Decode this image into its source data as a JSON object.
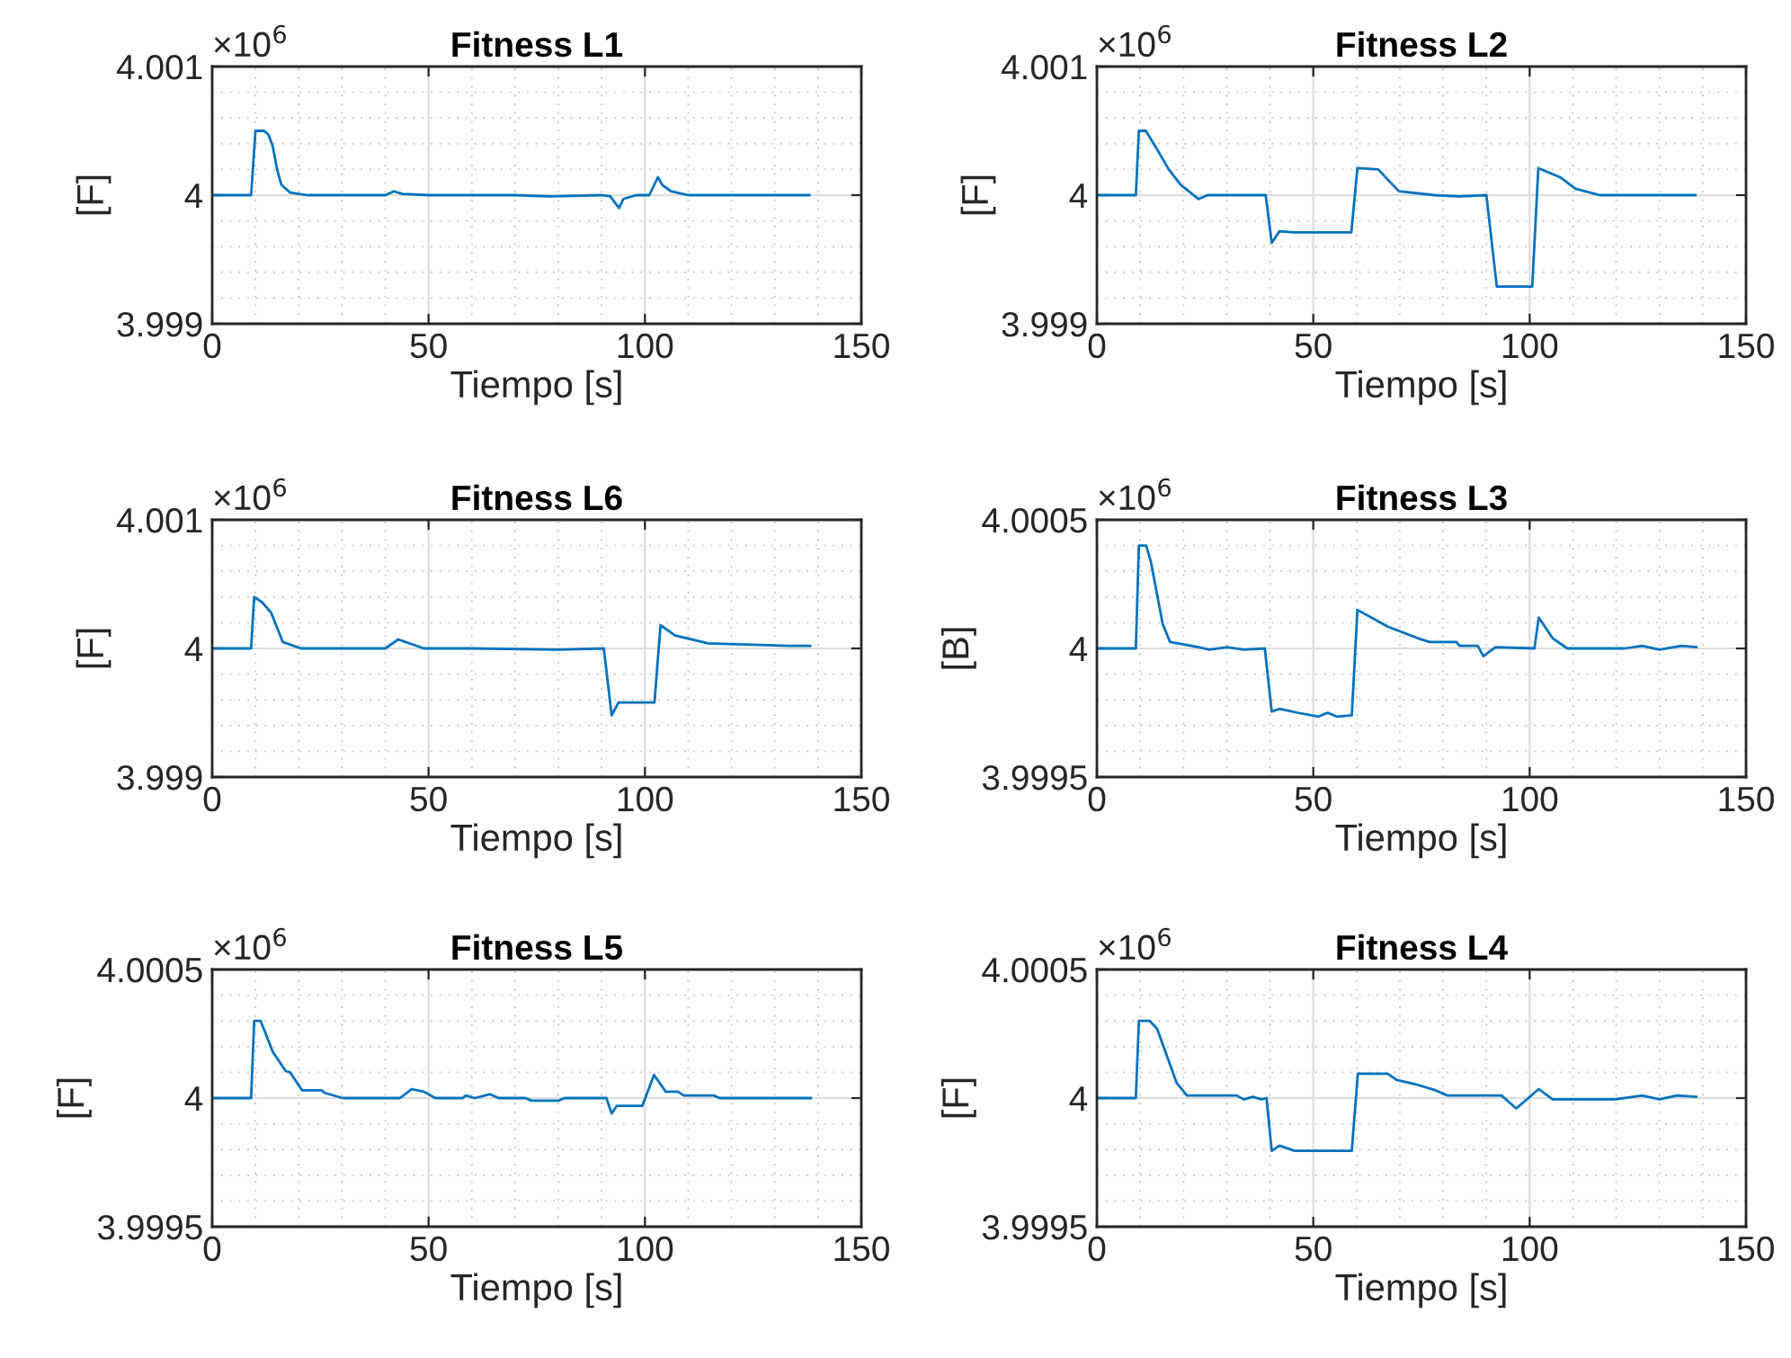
{
  "chart_data": [
    {
      "type": "line",
      "title": "Fitness L1",
      "xlabel": "Tiempo [s]",
      "ylabel": "[F]",
      "annotations": [
        "×10$^{6}$"
      ],
      "grid": true,
      "xlim": [
        0,
        150
      ],
      "xticks": [
        0,
        50,
        100,
        150
      ],
      "ylim": [
        3.999,
        4.001
      ],
      "yticks": [
        3.999,
        4,
        4.001
      ],
      "series": [
        {
          "color": "#0072bd",
          "x": [
            0,
            9,
            10,
            12,
            13,
            14,
            15,
            16,
            18,
            20,
            22,
            30,
            40,
            42,
            44,
            50,
            55,
            70,
            78,
            90,
            92,
            94,
            95,
            98,
            101,
            103,
            104,
            106,
            110,
            120,
            130,
            138
          ],
          "values": [
            4,
            4,
            4.0005,
            4.0005,
            4.00047,
            4.00038,
            4.0002,
            4.00008,
            4.00002,
            4.00001,
            4,
            4,
            4,
            4.00003,
            4.00001,
            4,
            4,
            4,
            3.99999,
            4,
            3.99999,
            3.9999,
            3.99997,
            4,
            4,
            4.00014,
            4.00008,
            4.00003,
            4,
            4,
            4,
            4
          ]
        }
      ]
    },
    {
      "type": "line",
      "title": "Fitness L2",
      "xlabel": "Tiempo [s]",
      "ylabel": "[F]",
      "annotations": [
        "×10$^{6}$"
      ],
      "grid": true,
      "xlim": [
        0,
        150
      ],
      "xticks": [
        0,
        50,
        100,
        150
      ],
      "ylim": [
        3.999,
        4.001
      ],
      "yticks": [
        3.999,
        4,
        4.001
      ],
      "series": [
        {
          "color": "#0072bd",
          "x": [
            0,
            9,
            9.7,
            11.3,
            13.5,
            16.6,
            19.4,
            23.5,
            25.6,
            39,
            40.4,
            42.2,
            45.6,
            58.8,
            60.2,
            65,
            69.8,
            78,
            83.7,
            90,
            92.4,
            100.6,
            102,
            107,
            110.6,
            116.2,
            138.3
          ],
          "values": [
            4,
            4,
            4.0005,
            4.0005,
            4.00038,
            4.0002,
            4.00008,
            3.99997,
            4,
            4,
            3.99963,
            3.99972,
            3.99971,
            3.99971,
            4.00021,
            4.0002,
            4.00003,
            4,
            3.99999,
            4,
            3.99929,
            3.99929,
            4.00021,
            4.00014,
            4.00005,
            4,
            4
          ]
        }
      ]
    },
    {
      "type": "line",
      "title": "Fitness L6",
      "xlabel": "Tiempo [s]",
      "ylabel": "[F]",
      "annotations": [
        "×10$^{6}$"
      ],
      "grid": true,
      "xlim": [
        0,
        150
      ],
      "xticks": [
        0,
        50,
        100,
        150
      ],
      "ylim": [
        3.999,
        4.001
      ],
      "yticks": [
        3.999,
        4,
        4.001
      ],
      "series": [
        {
          "color": "#0072bd",
          "x": [
            0,
            9,
            9.7,
            11.5,
            13.6,
            16.3,
            20.5,
            30,
            40,
            43,
            48.9,
            60,
            80,
            90.5,
            92.3,
            93.9,
            102.2,
            103.6,
            107,
            114.6,
            133.4,
            138.2
          ],
          "values": [
            4,
            4,
            4.0004,
            4.00036,
            4.00028,
            4.00005,
            4,
            4,
            4,
            4.00007,
            4,
            4,
            3.99999,
            4,
            3.99948,
            3.99958,
            3.99958,
            4.00018,
            4.0001,
            4.00004,
            4.00002,
            4.00002
          ]
        }
      ]
    },
    {
      "type": "line",
      "title": "Fitness L3",
      "xlabel": "Tiempo [s]",
      "ylabel": "[B]",
      "annotations": [
        "×10$^{6}$"
      ],
      "grid": true,
      "xlim": [
        0,
        150
      ],
      "xticks": [
        0,
        50,
        100,
        150
      ],
      "ylim": [
        3.9995,
        4.0005
      ],
      "yticks": [
        3.9995,
        4,
        4.0005
      ],
      "series": [
        {
          "color": "#0072bd",
          "x": [
            0,
            9,
            9.7,
            11.4,
            12.5,
            15.2,
            16.9,
            18.7,
            23.5,
            26,
            30,
            34,
            38.8,
            40.4,
            42.2,
            46.4,
            51.2,
            53.3,
            55.4,
            58.9,
            60.2,
            67.2,
            74.1,
            76.9,
            83.1,
            83.8,
            88,
            89.3,
            92.1,
            101.1,
            102.1,
            105.3,
            108.7,
            121.9,
            126,
            130,
            135,
            138.5
          ],
          "values": [
            4,
            4,
            4.0004,
            4.0004,
            4.000335,
            4.000095,
            4.000025,
            4.00002,
            4.000005,
            3.999995,
            4.000005,
            3.999995,
            4,
            3.999755,
            3.999765,
            3.99975,
            3.999735,
            3.99975,
            3.999735,
            3.99974,
            4.00015,
            4.000085,
            4.00004,
            4.000025,
            4.000025,
            4.00001,
            4.00001,
            3.99997,
            4.000005,
            4,
            4.00012,
            4.00004,
            4,
            4,
            4.00001,
            3.999995,
            4.00001,
            4.000005
          ]
        }
      ]
    },
    {
      "type": "line",
      "title": "Fitness L5",
      "xlabel": "Tiempo [s]",
      "ylabel": "[F]",
      "annotations": [
        "×10$^{6}$"
      ],
      "grid": true,
      "xlim": [
        0,
        150
      ],
      "xticks": [
        0,
        50,
        100,
        150
      ],
      "ylim": [
        3.9995,
        4.0005
      ],
      "yticks": [
        3.9995,
        4,
        4.0005
      ],
      "series": [
        {
          "color": "#0072bd",
          "x": [
            0,
            9,
            9.7,
            11.2,
            14,
            15,
            17,
            18,
            20.8,
            25.3,
            26,
            30.2,
            43.4,
            46.1,
            48.9,
            51.6,
            57.9,
            58.6,
            60.7,
            64.2,
            66.2,
            72.4,
            73.8,
            80,
            81.4,
            91.1,
            92.3,
            93.5,
            99.4,
            102.1,
            104.8,
            107.6,
            109,
            115.9,
            117.3,
            138.3
          ],
          "values": [
            4,
            4,
            4.0003,
            4.0003,
            4.00018,
            4.000155,
            4.000105,
            4.0001,
            4.00003,
            4.00003,
            4.00002,
            4,
            4,
            4.000035,
            4.000025,
            4,
            4,
            4.00001,
            4,
            4.000015,
            4,
            4,
            3.99999,
            3.99999,
            4,
            4,
            3.99994,
            3.99997,
            3.99997,
            4.00009,
            4.000025,
            4.000025,
            4.00001,
            4.00001,
            4,
            4
          ]
        }
      ]
    },
    {
      "type": "line",
      "title": "Fitness L4",
      "xlabel": "Tiempo [s]",
      "ylabel": "[F]",
      "annotations": [
        "×10$^{6}$"
      ],
      "grid": true,
      "xlim": [
        0,
        150
      ],
      "xticks": [
        0,
        50,
        100,
        150
      ],
      "ylim": [
        3.9995,
        4.0005
      ],
      "yticks": [
        3.9995,
        4,
        4.0005
      ],
      "series": [
        {
          "color": "#0072bd",
          "x": [
            0,
            9,
            9.7,
            12.2,
            13.9,
            18.4,
            20.8,
            32.3,
            34,
            36,
            38,
            39.2,
            40.4,
            42.2,
            45.7,
            58.9,
            60.3,
            67.2,
            69.3,
            73.4,
            78.3,
            81,
            93.5,
            96.9,
            102.1,
            105.3,
            119.8,
            126,
            130,
            134,
            138.5
          ],
          "values": [
            4,
            4,
            4.0003,
            4.0003,
            4.00027,
            4.00006,
            4.00001,
            4.00001,
            3.999995,
            4.000005,
            3.999995,
            4,
            3.999795,
            3.999815,
            3.999795,
            3.999795,
            4.000095,
            4.000095,
            4.00007,
            4.000055,
            4.00003,
            4.00001,
            4.00001,
            3.99996,
            4.000035,
            3.999995,
            3.999995,
            4.00001,
            3.999995,
            4.00001,
            4.000005
          ]
        }
      ]
    }
  ]
}
